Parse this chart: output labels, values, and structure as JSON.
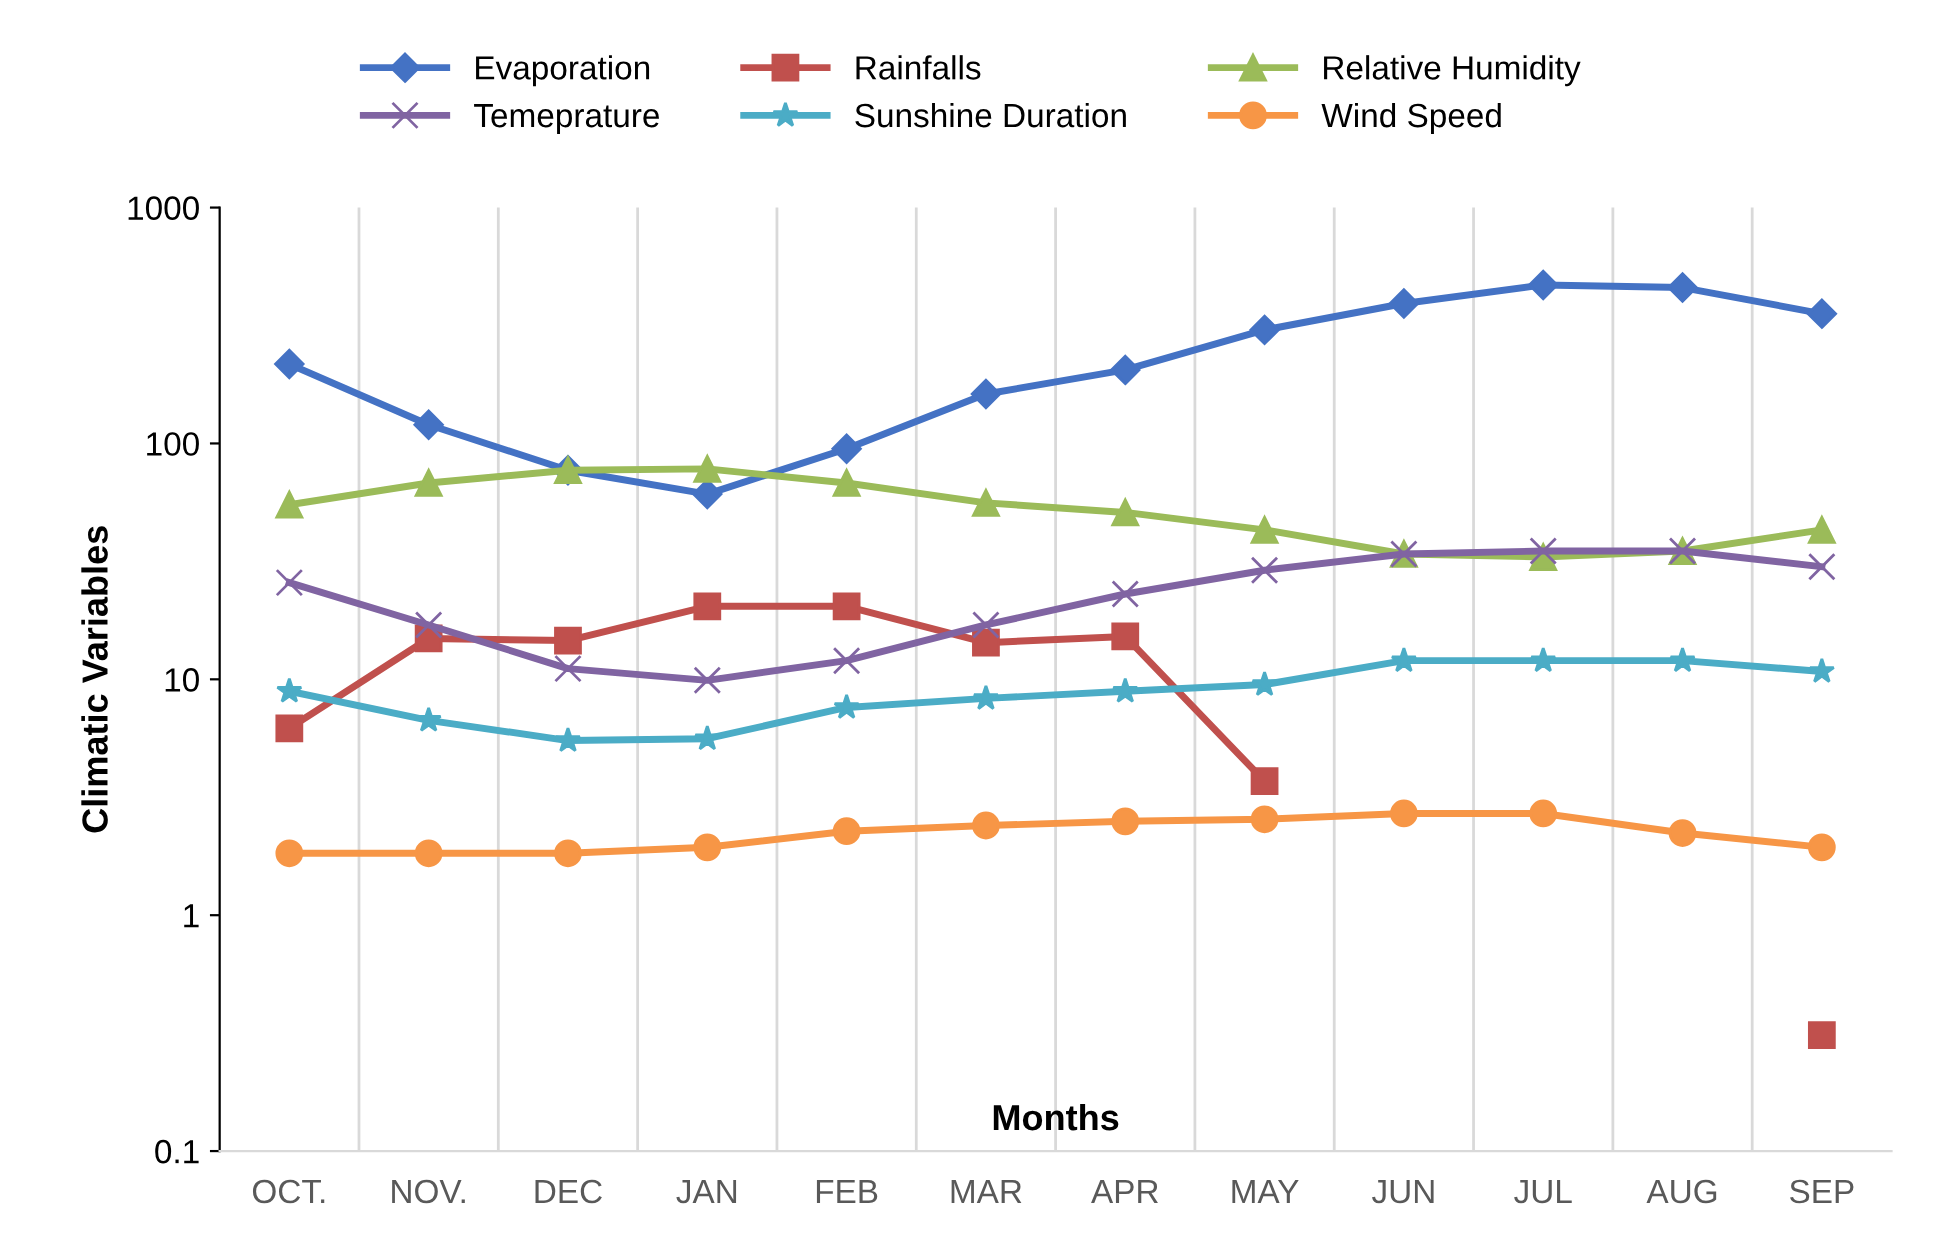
{
  "chart_data": {
    "type": "line",
    "xlabel": "Months",
    "ylabel": "Climatic Variables",
    "categories": [
      "OCT.",
      "NOV.",
      "DEC",
      "JAN",
      "FEB",
      "MAR",
      "APR",
      "MAY",
      "JUN",
      "JUL",
      "AUG",
      "SEP"
    ],
    "series": [
      {
        "name": "Evaporation",
        "color": "#4472c4",
        "marker": "diamond",
        "values": [
          217,
          120,
          77,
          61,
          95,
          162,
          205,
          303,
          392,
          470,
          458,
          355
        ]
      },
      {
        "name": "Rainfalls",
        "color": "#c0504d",
        "marker": "square",
        "values": [
          6.2,
          14.9,
          14.6,
          20.4,
          20.4,
          14.3,
          15.2,
          3.7,
          null,
          null,
          null,
          0.31
        ]
      },
      {
        "name": "Relative Humidity",
        "color": "#9bbb59",
        "marker": "triangle",
        "values": [
          55,
          68,
          77,
          78,
          68,
          56,
          51,
          43,
          34,
          33,
          35,
          43
        ]
      },
      {
        "name": "Temeprature",
        "color": "#8064a2",
        "marker": "cross",
        "values": [
          25.7,
          17,
          11.1,
          9.9,
          12,
          17,
          23,
          29,
          34,
          35,
          35,
          30
        ]
      },
      {
        "name": "Sunshine Duration",
        "color": "#4bacc6",
        "marker": "star",
        "values": [
          8.9,
          6.7,
          5.5,
          5.6,
          7.6,
          8.3,
          8.9,
          9.5,
          12,
          12,
          12,
          10.8
        ]
      },
      {
        "name": "Wind Speed",
        "color": "#f79646",
        "marker": "circle",
        "values": [
          1.83,
          1.83,
          1.83,
          1.94,
          2.27,
          2.4,
          2.5,
          2.55,
          2.7,
          2.7,
          2.23,
          1.94
        ]
      }
    ],
    "log": "y",
    "ylim": [
      0.1,
      1000
    ],
    "yticks": [
      0.1,
      1,
      10,
      100,
      1000
    ],
    "grid": "x",
    "legend": "top",
    "line_style": "solid"
  }
}
